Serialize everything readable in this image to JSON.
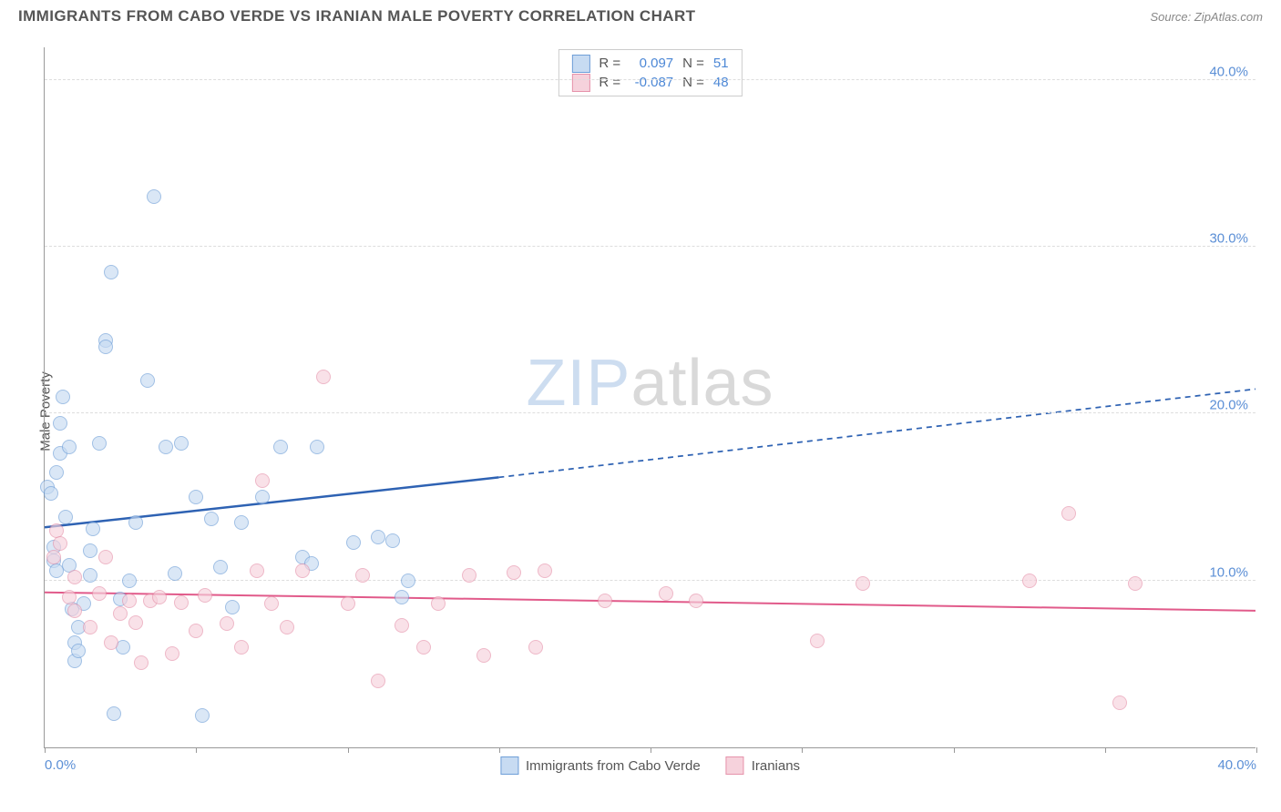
{
  "header": {
    "title": "IMMIGRANTS FROM CABO VERDE VS IRANIAN MALE POVERTY CORRELATION CHART",
    "source_prefix": "Source: ",
    "source_name": "ZipAtlas.com"
  },
  "chart": {
    "type": "scatter",
    "ylabel": "Male Poverty",
    "xlim": [
      0,
      40
    ],
    "ylim": [
      0,
      42
    ],
    "ytick_values": [
      10,
      20,
      30,
      40
    ],
    "ytick_labels": [
      "10.0%",
      "20.0%",
      "30.0%",
      "40.0%"
    ],
    "xtick_values": [
      0,
      5,
      10,
      15,
      20,
      25,
      30,
      35,
      40
    ],
    "xlabel_start": "0.0%",
    "xlabel_end": "40.0%",
    "background_color": "#ffffff",
    "grid_color": "#dddddd",
    "axis_color": "#999999",
    "tick_label_color": "#5b8fd6",
    "watermark": {
      "zip": "ZIP",
      "atlas": "atlas",
      "zip_color": "#cdddf0",
      "atlas_color": "#d9d9d9",
      "fontsize": 72
    }
  },
  "correlation_legend": {
    "rows": [
      {
        "swatch_fill": "#c7dbf2",
        "swatch_border": "#6f9fd8",
        "r_label": "R =",
        "r": "0.097",
        "n_label": "N =",
        "n": "51"
      },
      {
        "swatch_fill": "#f6d2dc",
        "swatch_border": "#e693ab",
        "r_label": "R =",
        "r": "-0.087",
        "n_label": "N =",
        "n": "48"
      }
    ]
  },
  "series_legend": {
    "items": [
      {
        "swatch_fill": "#c7dbf2",
        "swatch_border": "#6f9fd8",
        "label": "Immigrants from Cabo Verde"
      },
      {
        "swatch_fill": "#f6d2dc",
        "swatch_border": "#e693ab",
        "label": "Iranians"
      }
    ]
  },
  "series": [
    {
      "name": "cabo_verde",
      "marker_fill": "#c7dbf2",
      "marker_border": "#6f9fd8",
      "marker_size": 16,
      "trend": {
        "x1": 0,
        "y1": 13.2,
        "x2_solid": 15,
        "y2_solid": 16.2,
        "x2": 40,
        "y2": 21.5,
        "color": "#2e62b3",
        "width": 2.5
      },
      "points": [
        [
          0.1,
          15.6
        ],
        [
          0.2,
          15.2
        ],
        [
          0.3,
          12.0
        ],
        [
          0.3,
          11.2
        ],
        [
          0.4,
          10.6
        ],
        [
          0.4,
          16.5
        ],
        [
          0.5,
          17.6
        ],
        [
          0.5,
          19.4
        ],
        [
          0.6,
          21.0
        ],
        [
          0.7,
          13.8
        ],
        [
          0.8,
          18.0
        ],
        [
          0.8,
          10.9
        ],
        [
          0.9,
          8.3
        ],
        [
          1.0,
          5.2
        ],
        [
          1.0,
          6.3
        ],
        [
          1.1,
          5.8
        ],
        [
          1.1,
          7.2
        ],
        [
          1.3,
          8.6
        ],
        [
          1.5,
          10.3
        ],
        [
          1.5,
          11.8
        ],
        [
          1.6,
          13.1
        ],
        [
          1.8,
          18.2
        ],
        [
          2.0,
          24.4
        ],
        [
          2.0,
          24.0
        ],
        [
          2.2,
          28.5
        ],
        [
          2.3,
          2.0
        ],
        [
          2.5,
          8.9
        ],
        [
          2.6,
          6.0
        ],
        [
          2.8,
          10.0
        ],
        [
          3.0,
          13.5
        ],
        [
          3.4,
          22.0
        ],
        [
          3.6,
          33.0
        ],
        [
          4.0,
          18.0
        ],
        [
          4.3,
          10.4
        ],
        [
          4.5,
          18.2
        ],
        [
          5.0,
          15.0
        ],
        [
          5.2,
          1.9
        ],
        [
          5.5,
          13.7
        ],
        [
          5.8,
          10.8
        ],
        [
          6.2,
          8.4
        ],
        [
          6.5,
          13.5
        ],
        [
          7.2,
          15.0
        ],
        [
          7.8,
          18.0
        ],
        [
          8.5,
          11.4
        ],
        [
          8.8,
          11.0
        ],
        [
          9.0,
          18.0
        ],
        [
          10.2,
          12.3
        ],
        [
          11.0,
          12.6
        ],
        [
          11.5,
          12.4
        ],
        [
          11.8,
          9.0
        ],
        [
          12.0,
          10.0
        ]
      ]
    },
    {
      "name": "iranians",
      "marker_fill": "#f6d2dc",
      "marker_border": "#e693ab",
      "marker_size": 16,
      "trend": {
        "x1": 0,
        "y1": 9.3,
        "x2_solid": 40,
        "y2_solid": 8.2,
        "x2": 40,
        "y2": 8.2,
        "color": "#e15a8a",
        "width": 2
      },
      "points": [
        [
          0.3,
          11.4
        ],
        [
          0.4,
          13.0
        ],
        [
          0.5,
          12.2
        ],
        [
          0.8,
          9.0
        ],
        [
          1.0,
          10.2
        ],
        [
          1.0,
          8.2
        ],
        [
          1.5,
          7.2
        ],
        [
          1.8,
          9.2
        ],
        [
          2.0,
          11.4
        ],
        [
          2.2,
          6.3
        ],
        [
          2.5,
          8.0
        ],
        [
          2.8,
          8.8
        ],
        [
          3.0,
          7.5
        ],
        [
          3.2,
          5.1
        ],
        [
          3.5,
          8.8
        ],
        [
          3.8,
          9.0
        ],
        [
          4.2,
          5.6
        ],
        [
          4.5,
          8.7
        ],
        [
          5.0,
          7.0
        ],
        [
          5.3,
          9.1
        ],
        [
          6.0,
          7.4
        ],
        [
          6.5,
          6.0
        ],
        [
          7.0,
          10.6
        ],
        [
          7.2,
          16.0
        ],
        [
          7.5,
          8.6
        ],
        [
          8.0,
          7.2
        ],
        [
          8.5,
          10.6
        ],
        [
          9.2,
          22.2
        ],
        [
          10.0,
          8.6
        ],
        [
          10.5,
          10.3
        ],
        [
          11.0,
          4.0
        ],
        [
          11.8,
          7.3
        ],
        [
          12.5,
          6.0
        ],
        [
          13.0,
          8.6
        ],
        [
          14.0,
          10.3
        ],
        [
          14.5,
          5.5
        ],
        [
          15.5,
          10.5
        ],
        [
          16.2,
          6.0
        ],
        [
          16.5,
          10.6
        ],
        [
          18.5,
          8.8
        ],
        [
          20.5,
          9.2
        ],
        [
          21.5,
          8.8
        ],
        [
          25.5,
          6.4
        ],
        [
          27.0,
          9.8
        ],
        [
          32.5,
          10.0
        ],
        [
          33.8,
          14.0
        ],
        [
          35.5,
          2.7
        ],
        [
          36.0,
          9.8
        ]
      ]
    }
  ]
}
